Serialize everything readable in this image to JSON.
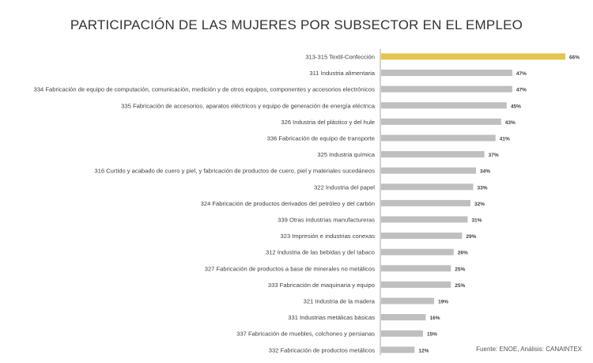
{
  "chart_data": {
    "type": "bar",
    "orientation": "horizontal",
    "title": "PARTICIPACIÓN DE LAS MUJERES POR SUBSECTOR EN EL EMPLEO",
    "source": "Fuente: ENOE, Análisis: CANAINTEX",
    "categories": [
      "313-315 Textil-Confección",
      "311 Industria alimentaria",
      "334 Fabricación de equipo de computación, comunicación, medición y de otros equipos, componentes y accesorios electrónicos",
      "335 Fabricación de accesorios, aparatos eléctricos y equipo de generación de energía  eléctrica",
      "326 Industria del plástico y del hule",
      "336 Fabricación de equipo de transporte",
      "325 Industria química",
      "316 Curtido y acabado de cuero y piel,  y fabricación de productos de cuero, piel y materiales sucedáneos",
      "322 Industria del papel",
      "324 Fabricación de productos derivados del petróleo y del carbón",
      "339 Otras industrias manufactureras",
      "323 Impresión e industrias conexas",
      "312 Industria de las bebidas y del tabaco",
      "327 Fabricación de productos a base de minerales no metálicos",
      "333 Fabricación de maquinaria y equipo",
      "321 Industria de la madera",
      "331 Industrias metálicas básicas",
      "337 Fabricación de muebles, colchones y persianas",
      "332 Fabricación de productos metálicos"
    ],
    "values": [
      66,
      47,
      47,
      45,
      43,
      41,
      37,
      34,
      33,
      32,
      31,
      29,
      26,
      25,
      25,
      19,
      16,
      15,
      12
    ],
    "value_labels": [
      "66%",
      "47%",
      "47%",
      "45%",
      "43%",
      "41%",
      "37%",
      "34%",
      "33%",
      "32%",
      "31%",
      "29%",
      "26%",
      "25%",
      "25%",
      "19%",
      "16%",
      "15%",
      "12%"
    ],
    "xlim": [
      0,
      66
    ],
    "grid": false,
    "legend": "none",
    "colors": {
      "highlight": "#E2C44E",
      "bar": "#BFBFBF",
      "axis": "#A6A6A6",
      "text": "#404040"
    }
  }
}
